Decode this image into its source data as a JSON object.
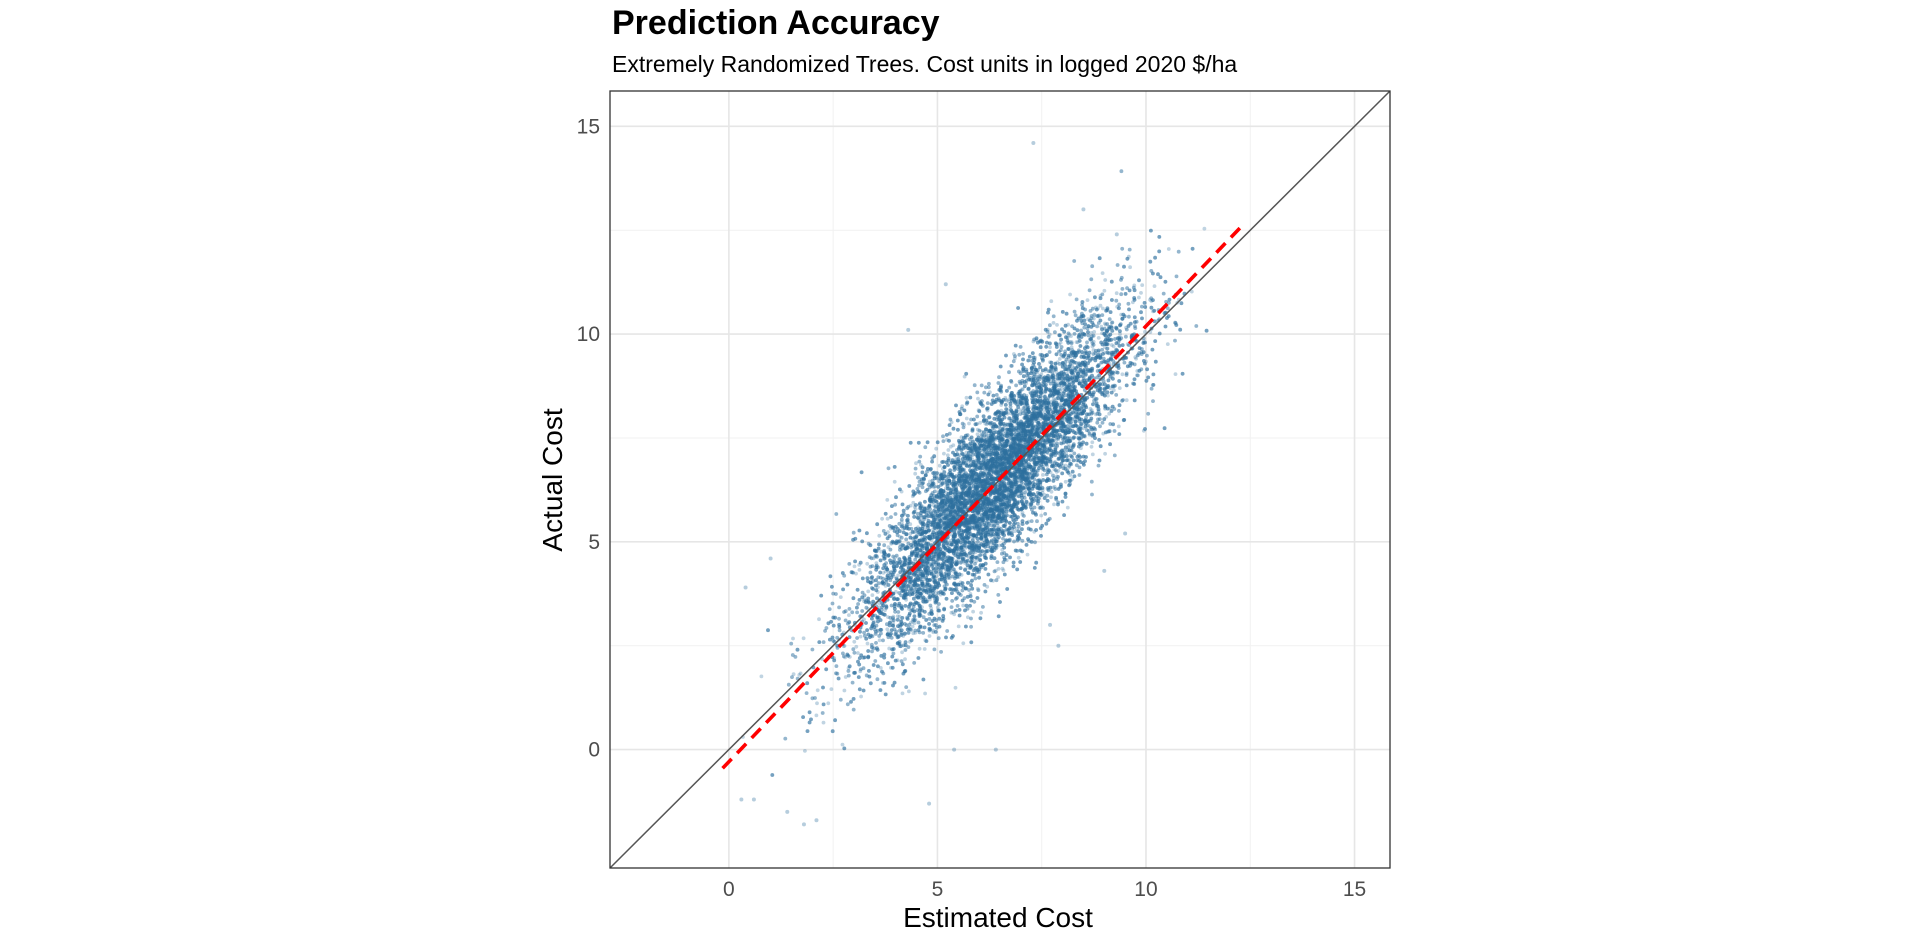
{
  "chart_data": {
    "type": "scatter",
    "title": "Prediction Accuracy",
    "subtitle": "Extremely Randomized Trees. Cost units in logged 2020 $/ha",
    "xlabel": "Estimated Cost",
    "ylabel": "Actual Cost",
    "xlim": [
      -2.85,
      15.85
    ],
    "ylim": [
      -2.85,
      15.85
    ],
    "x_ticks": [
      0,
      5,
      10,
      15
    ],
    "y_ticks": [
      0,
      5,
      10,
      15
    ],
    "x_tick_labels": [
      "0",
      "5",
      "10",
      "15"
    ],
    "y_tick_labels": [
      "0",
      "5",
      "10",
      "15"
    ],
    "grid": true,
    "series": [
      {
        "kind": "points",
        "color": "#2e6f9e",
        "opacity": 0.3,
        "distribution": {
          "x_center": 6.35,
          "y_center": 6.45,
          "x_sd": 1.6,
          "y_sd": 1.95,
          "correlation": 0.86,
          "x_range": [
            -0.1,
            11.5
          ],
          "y_range": [
            -2.0,
            14.7
          ],
          "approx_count": 26000
        },
        "notable_points": [
          {
            "x": 7.3,
            "y": 14.6
          },
          {
            "x": 8.5,
            "y": 13.0
          },
          {
            "x": 9.3,
            "y": 12.4
          },
          {
            "x": 4.3,
            "y": 10.1
          },
          {
            "x": 5.2,
            "y": 11.2
          },
          {
            "x": 0.4,
            "y": 3.9
          },
          {
            "x": 1.0,
            "y": 4.6
          },
          {
            "x": 6.4,
            "y": 0.0
          },
          {
            "x": 5.4,
            "y": 0.0
          },
          {
            "x": 1.4,
            "y": -1.5
          },
          {
            "x": 1.8,
            "y": -1.8
          },
          {
            "x": 2.1,
            "y": -1.7
          },
          {
            "x": 4.8,
            "y": -1.3
          },
          {
            "x": 0.6,
            "y": -1.2
          },
          {
            "x": 0.3,
            "y": -1.2
          },
          {
            "x": 9.5,
            "y": 5.2
          },
          {
            "x": 9.0,
            "y": 4.3
          },
          {
            "x": 7.7,
            "y": 3.0
          },
          {
            "x": 7.9,
            "y": 2.5
          }
        ]
      },
      {
        "kind": "line",
        "label_role": "identity",
        "color": "#555555",
        "style": "solid",
        "x": [
          -2.85,
          15.85
        ],
        "y": [
          -2.85,
          15.85
        ]
      },
      {
        "kind": "line",
        "label_role": "fit",
        "color": "#ff0000",
        "style": "dashed",
        "x": [
          -0.15,
          12.25
        ],
        "y": [
          -0.45,
          12.55
        ]
      }
    ]
  }
}
